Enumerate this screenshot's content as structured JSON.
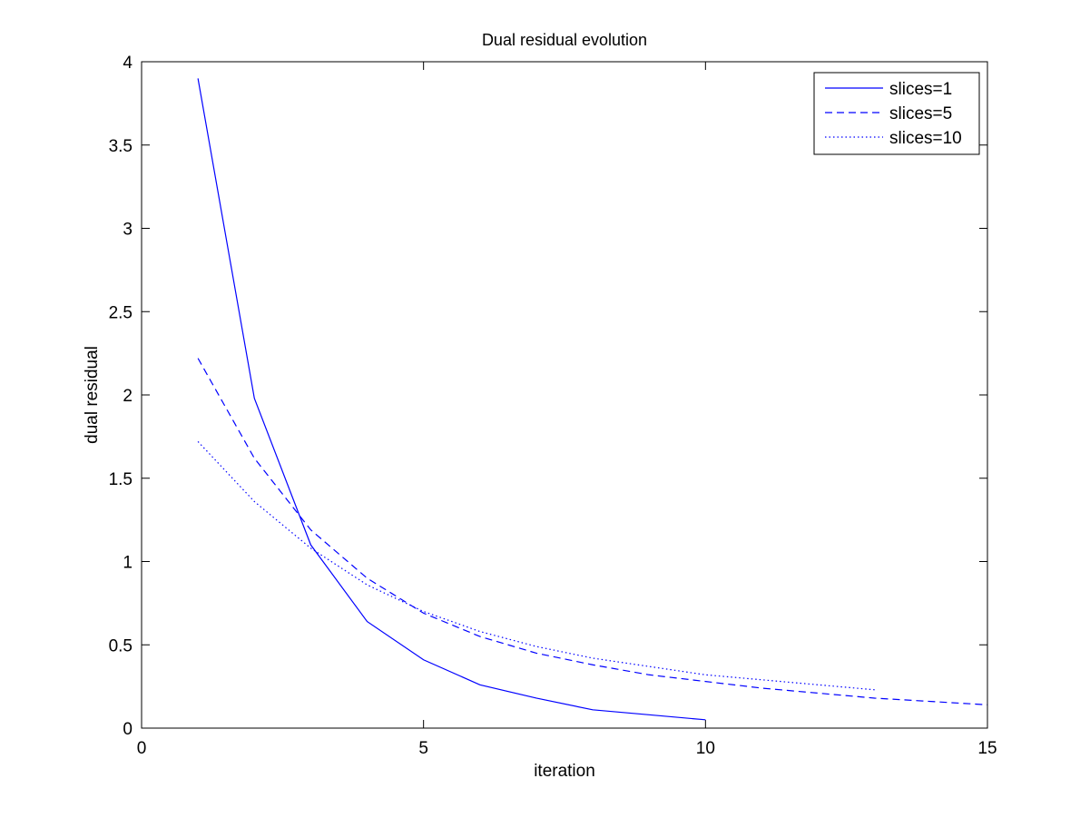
{
  "chart_data": {
    "type": "line",
    "title": "Dual residual evolution",
    "xlabel": "iteration",
    "ylabel": "dual residual",
    "xlim": [
      0,
      15
    ],
    "ylim": [
      0,
      4
    ],
    "xticks": [
      0,
      5,
      10,
      15
    ],
    "xtick_labels": [
      "0",
      "5",
      "10",
      "15"
    ],
    "yticks": [
      0,
      0.5,
      1,
      1.5,
      2,
      2.5,
      3,
      3.5,
      4
    ],
    "ytick_labels": [
      "0",
      "0.5",
      "1",
      "1.5",
      "2",
      "2.5",
      "3",
      "3.5",
      "4"
    ],
    "grid": false,
    "legend_position": "top-right",
    "series_color": "#0000ff",
    "series": [
      {
        "name": "slices=1",
        "style": "solid",
        "x": [
          1,
          2,
          3,
          4,
          5,
          6,
          7,
          8,
          9,
          10
        ],
        "values": [
          3.9,
          1.98,
          1.1,
          0.64,
          0.41,
          0.26,
          0.18,
          0.11,
          0.08,
          0.05
        ]
      },
      {
        "name": "slices=5",
        "style": "dashed",
        "x": [
          1,
          2,
          3,
          4,
          5,
          6,
          7,
          8,
          9,
          10,
          11,
          12,
          13,
          14,
          15
        ],
        "values": [
          2.22,
          1.62,
          1.19,
          0.9,
          0.69,
          0.55,
          0.45,
          0.38,
          0.32,
          0.28,
          0.24,
          0.21,
          0.18,
          0.16,
          0.14
        ]
      },
      {
        "name": "slices=10",
        "style": "dotted",
        "x": [
          1,
          2,
          3,
          4,
          5,
          6,
          7,
          8,
          9,
          10,
          11,
          12,
          13
        ],
        "values": [
          1.72,
          1.36,
          1.08,
          0.86,
          0.7,
          0.58,
          0.49,
          0.42,
          0.37,
          0.32,
          0.29,
          0.26,
          0.23
        ]
      }
    ]
  }
}
